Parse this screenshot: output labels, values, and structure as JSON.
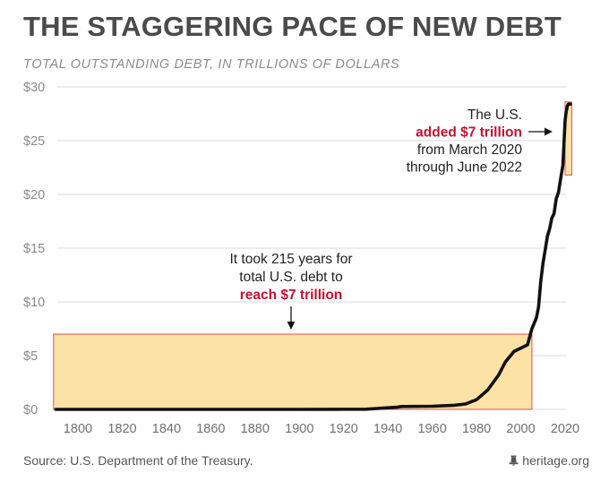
{
  "header": {
    "title": "THE STAGGERING PACE OF NEW DEBT",
    "subtitle": "TOTAL OUTSTANDING DEBT, IN TRILLIONS OF DOLLARS"
  },
  "footer": {
    "source": "Source: U.S. Department of the Treasury.",
    "brand": "heritage.org",
    "brand_icon": "bell-icon"
  },
  "colors": {
    "title": "#4a4a4a",
    "line": "#111111",
    "highlight_fill": "#fde2a6",
    "highlight_stroke": "#e05050",
    "accent_red": "#c8102e",
    "grid": "#d9d9d9"
  },
  "chart_data": {
    "type": "line",
    "title": "THE STAGGERING PACE OF NEW DEBT",
    "subtitle": "TOTAL OUTSTANDING DEBT, IN TRILLIONS OF DOLLARS",
    "xlabel": "",
    "ylabel": "",
    "xlim": [
      1790,
      2022
    ],
    "ylim": [
      0,
      30
    ],
    "x_ticks": [
      1800,
      1820,
      1840,
      1860,
      1880,
      1900,
      1920,
      1940,
      1960,
      1980,
      2000,
      2020
    ],
    "y_ticks": [
      {
        "value": 0,
        "label": "$0"
      },
      {
        "value": 5,
        "label": "$5"
      },
      {
        "value": 10,
        "label": "$10"
      },
      {
        "value": 15,
        "label": "$15"
      },
      {
        "value": 20,
        "label": "$20"
      },
      {
        "value": 25,
        "label": "$25"
      },
      {
        "value": 30,
        "label": "$30"
      }
    ],
    "grid": true,
    "series": [
      {
        "x": [
          1790,
          1860,
          1900,
          1917,
          1930,
          1944,
          1946,
          1960,
          1970,
          1975,
          1980,
          1985,
          1990,
          1993,
          1997,
          2000,
          2003,
          2005,
          2007,
          2008,
          2009,
          2010,
          2011,
          2012,
          2013,
          2014,
          2015,
          2016,
          2017,
          2018,
          2019,
          2020,
          2020.5,
          2021,
          2021.5,
          2022.4
        ],
        "y": [
          0,
          0,
          0,
          0.01,
          0.02,
          0.2,
          0.27,
          0.29,
          0.38,
          0.5,
          0.9,
          1.8,
          3.2,
          4.4,
          5.4,
          5.7,
          6.0,
          7.5,
          8.5,
          9.5,
          11.9,
          13.6,
          14.8,
          16.1,
          16.8,
          17.8,
          18.2,
          19.6,
          20.2,
          21.5,
          22.7,
          26.9,
          27.7,
          28.2,
          28.4,
          28.4
        ]
      }
    ],
    "highlights": [
      {
        "x_start": 1789,
        "x_end": 2005,
        "y_start": 0,
        "y_end": 7
      },
      {
        "x_start": 2020,
        "x_end": 2023,
        "y_start": 21.8,
        "y_end": 28.6
      }
    ],
    "annotations": [
      {
        "id": "early",
        "lines": [
          {
            "text": "It took 215 years for",
            "red": false
          },
          {
            "text": "total U.S. debt to",
            "red": false
          },
          {
            "text": "reach $7 trillion",
            "red": true
          }
        ]
      },
      {
        "id": "recent",
        "lines": [
          {
            "text": "The U.S.",
            "red": false
          },
          {
            "text": "added $7 trillion",
            "red": true
          },
          {
            "text": "from March 2020",
            "red": false
          },
          {
            "text": "through June 2022",
            "red": false
          }
        ]
      }
    ]
  }
}
